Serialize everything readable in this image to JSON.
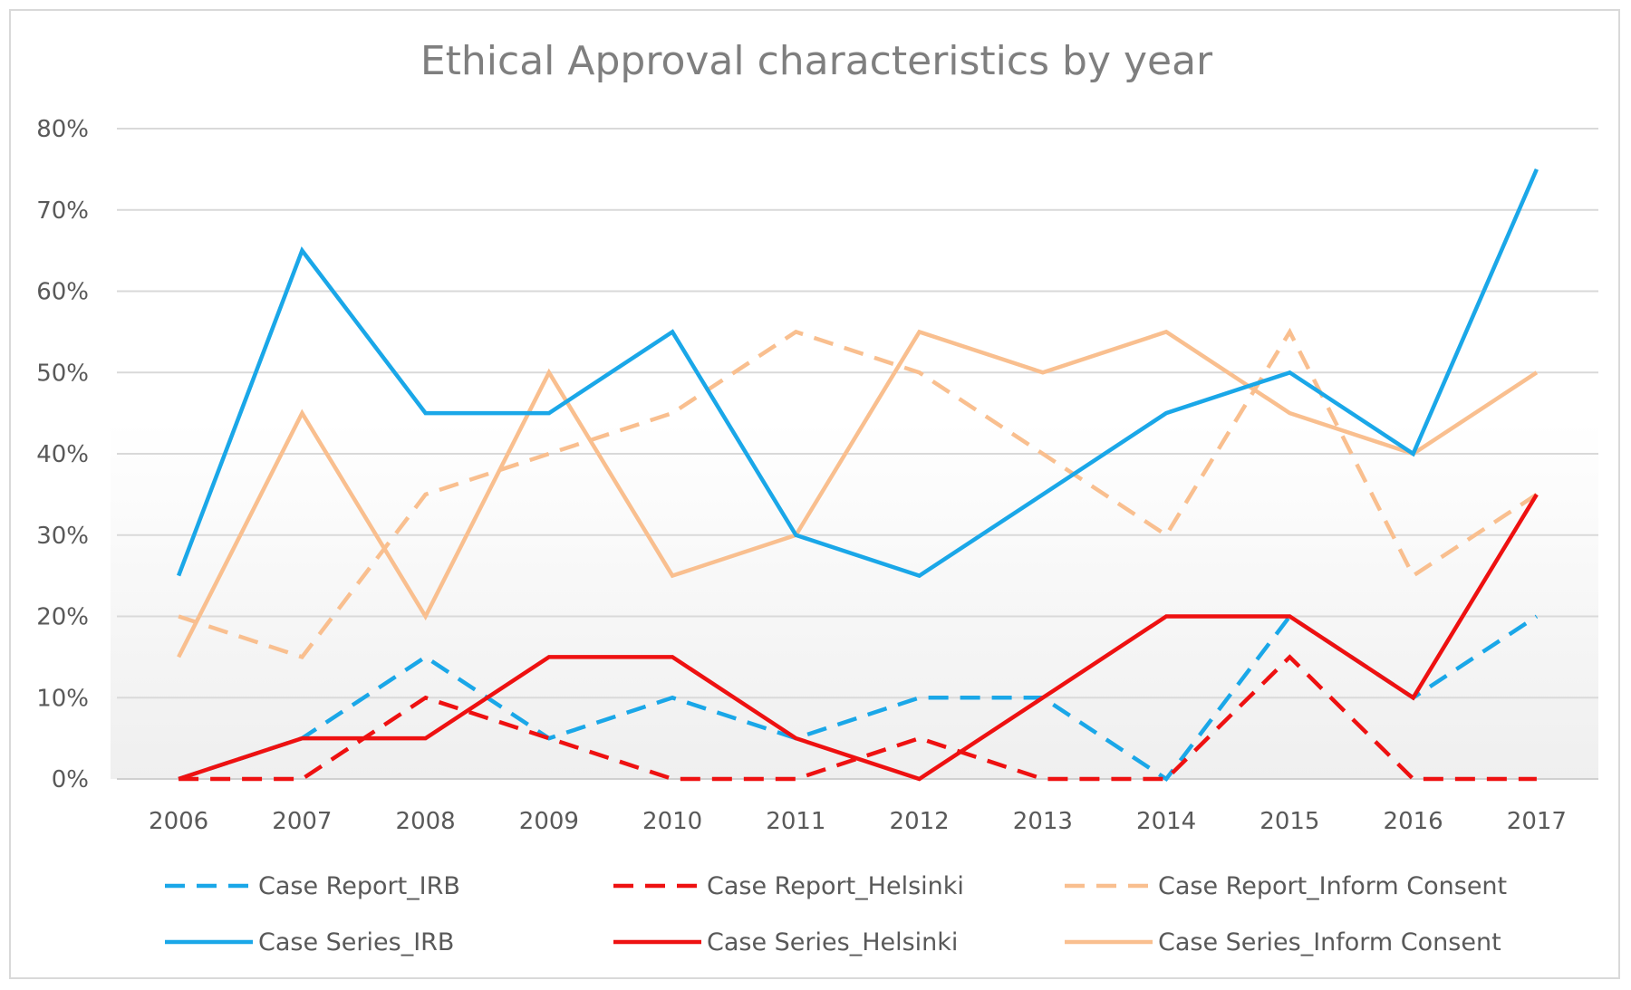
{
  "chart_data": {
    "type": "line",
    "title": "Ethical  Approval characteristics  by year",
    "xlabel": "",
    "ylabel": "",
    "x": [
      "2006",
      "2007",
      "2008",
      "2009",
      "2010",
      "2011",
      "2012",
      "2013",
      "2014",
      "2015",
      "2016",
      "2017"
    ],
    "y_ticks": [
      "0%",
      "10%",
      "20%",
      "30%",
      "40%",
      "50%",
      "60%",
      "70%",
      "80%"
    ],
    "ylim": [
      0,
      80
    ],
    "y_unit": "%",
    "grid": true,
    "legend_position": "bottom",
    "series": [
      {
        "name": "Case Report_IRB",
        "color": "#1aa7e8",
        "dash": true,
        "values": [
          0,
          5,
          15,
          5,
          10,
          5,
          10,
          10,
          0,
          20,
          10,
          20
        ]
      },
      {
        "name": "Case Report_Helsinki",
        "color": "#ee1111",
        "dash": true,
        "values": [
          0,
          0,
          10,
          5,
          0,
          0,
          5,
          0,
          0,
          15,
          0,
          0
        ]
      },
      {
        "name": "Case Report_Inform Consent",
        "color": "#f9bf8f",
        "dash": true,
        "values": [
          20,
          15,
          35,
          40,
          45,
          55,
          50,
          40,
          30,
          55,
          25,
          35
        ]
      },
      {
        "name": "Case Series_IRB",
        "color": "#1aa7e8",
        "dash": false,
        "values": [
          25,
          65,
          45,
          45,
          55,
          30,
          25,
          35,
          45,
          50,
          40,
          75
        ]
      },
      {
        "name": "Case Series_Helsinki",
        "color": "#ee1111",
        "dash": false,
        "values": [
          0,
          5,
          5,
          15,
          15,
          5,
          0,
          10,
          20,
          20,
          10,
          35
        ]
      },
      {
        "name": "Case Series_Inform Consent",
        "color": "#f9bf8f",
        "dash": false,
        "values": [
          15,
          45,
          20,
          50,
          25,
          30,
          55,
          50,
          55,
          45,
          40,
          50
        ]
      }
    ]
  }
}
